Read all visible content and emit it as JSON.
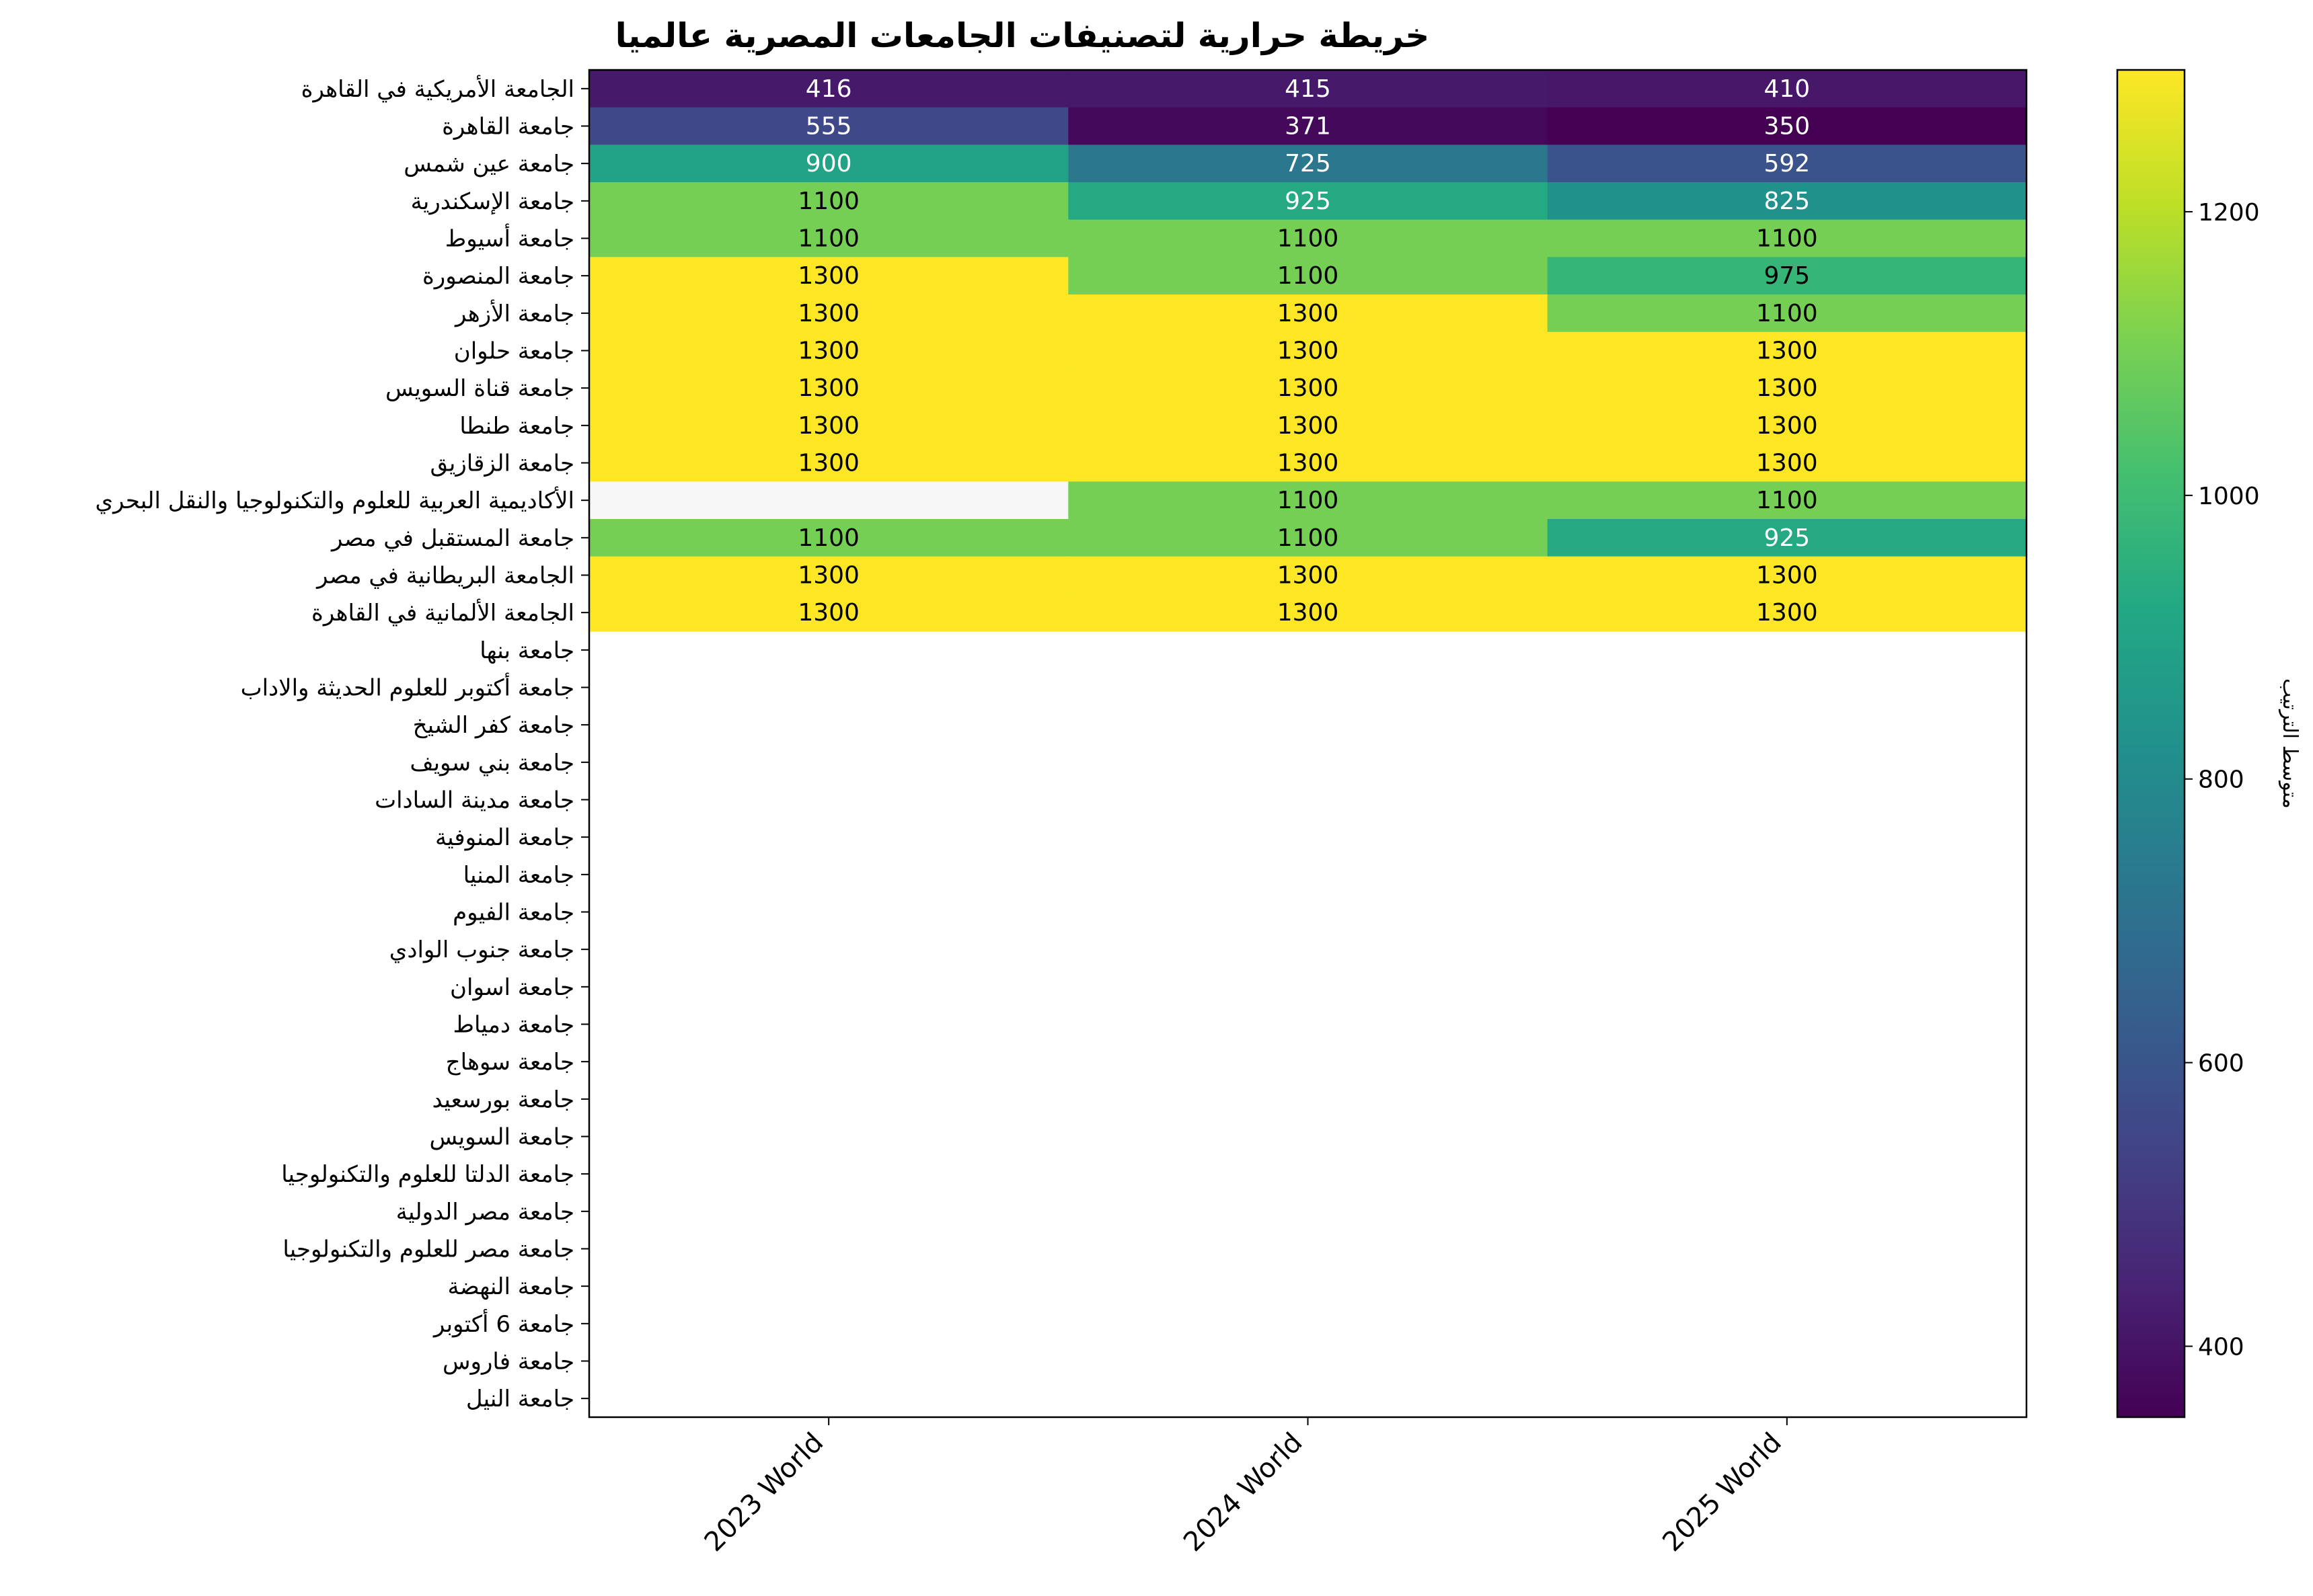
{
  "chart_data": {
    "type": "heatmap",
    "title": "خريطة حرارية لتصنيفات الجامعات المصرية عالميا",
    "colormap": "viridis",
    "missing_color": "#f7f7f7",
    "colorbar": {
      "label": "متوسط الترتيب",
      "range": [
        350,
        1300
      ],
      "ticks": [
        400,
        600,
        800,
        1000,
        1200
      ],
      "tick_labels": [
        "400",
        "600",
        "800",
        "1000",
        "1200"
      ]
    },
    "columns": [
      "2023 World",
      "2024 World",
      "2025 World"
    ],
    "rows": [
      "الجامعة الأمريكية في القاهرة",
      "جامعة القاهرة",
      "جامعة عين شمس",
      "جامعة الإسكندرية",
      "جامعة أسيوط",
      "جامعة المنصورة",
      "جامعة الأزهر",
      "جامعة حلوان",
      "جامعة قناة السويس",
      "جامعة طنطا",
      "جامعة الزقازيق",
      "الأكاديمية العربية للعلوم والتكنولوجيا والنقل البحري",
      "جامعة المستقبل في مصر",
      "الجامعة البريطانية في مصر",
      "الجامعة الألمانية في القاهرة",
      "جامعة بنها",
      "جامعة أكتوبر للعلوم الحديثة والاداب",
      "جامعة كفر الشيخ",
      "جامعة بني سويف",
      "جامعة مدينة السادات",
      "جامعة المنوفية",
      "جامعة المنيا",
      "جامعة الفيوم",
      "جامعة جنوب الوادي",
      "جامعة اسوان",
      "جامعة دمياط",
      "جامعة سوهاج",
      "جامعة بورسعيد",
      "جامعة السويس",
      "جامعة الدلتا للعلوم والتكنولوجيا",
      "جامعة مصر الدولية",
      "جامعة مصر للعلوم والتكنولوجيا",
      "جامعة النهضة",
      "جامعة 6 أكتوبر",
      "جامعة فاروس",
      "جامعة النيل"
    ],
    "values": [
      [
        416,
        415,
        410
      ],
      [
        555,
        371,
        350
      ],
      [
        900,
        725,
        592
      ],
      [
        1100,
        925,
        825
      ],
      [
        1100,
        1100,
        1100
      ],
      [
        1300,
        1100,
        975
      ],
      [
        1300,
        1300,
        1100
      ],
      [
        1300,
        1300,
        1300
      ],
      [
        1300,
        1300,
        1300
      ],
      [
        1300,
        1300,
        1300
      ],
      [
        1300,
        1300,
        1300
      ],
      [
        null,
        1100,
        1100
      ],
      [
        1100,
        1100,
        925
      ],
      [
        1300,
        1300,
        1300
      ],
      [
        1300,
        1300,
        1300
      ],
      [
        null,
        null,
        null
      ],
      [
        null,
        null,
        null
      ],
      [
        null,
        null,
        null
      ],
      [
        null,
        null,
        null
      ],
      [
        null,
        null,
        null
      ],
      [
        null,
        null,
        null
      ],
      [
        null,
        null,
        null
      ],
      [
        null,
        null,
        null
      ],
      [
        null,
        null,
        null
      ],
      [
        null,
        null,
        null
      ],
      [
        null,
        null,
        null
      ],
      [
        null,
        null,
        null
      ],
      [
        null,
        null,
        null
      ],
      [
        null,
        null,
        null
      ],
      [
        null,
        null,
        null
      ],
      [
        null,
        null,
        null
      ],
      [
        null,
        null,
        null
      ],
      [
        null,
        null,
        null
      ],
      [
        null,
        null,
        null
      ],
      [
        null,
        null,
        null
      ],
      [
        null,
        null,
        null
      ]
    ]
  }
}
